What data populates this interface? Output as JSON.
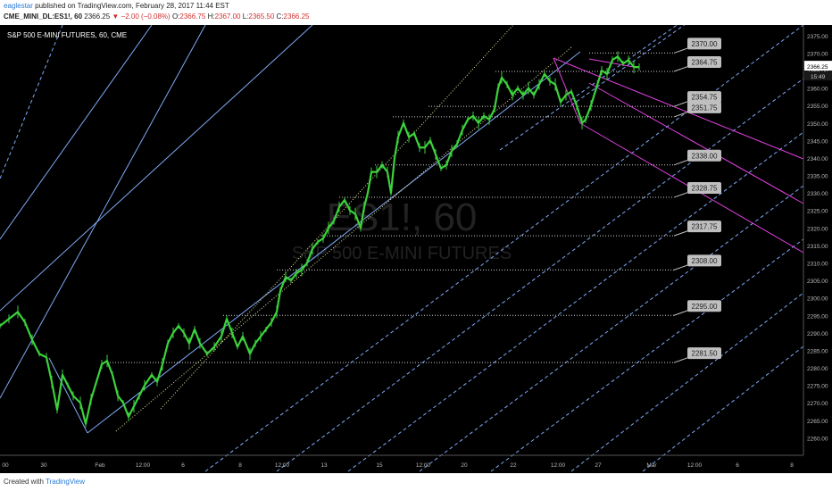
{
  "header": {
    "author": "eaglestar",
    "published_text": "published on TradingView.com, February 28, 2017 11:44 EST",
    "symbol": "CME_MINI_DL:ES1!, 60",
    "last": "2366.25",
    "change": "▼ −2.00 (−0.08%)",
    "open_label": "O:",
    "open": "2366.75",
    "high_label": "H:",
    "high": "2367.00",
    "low_label": "L:",
    "low": "2365.50",
    "close_label": "C:",
    "close": "2366.25"
  },
  "footer": {
    "created_with": "Created with",
    "brand": "TradingView"
  },
  "colors": {
    "background": "#000000",
    "candles": "#3cd23c",
    "channel": "#7fa9f5",
    "parallel_dotted": "#e6e6a0",
    "levels": "#cfcfcf",
    "down_channel": "#e040e0",
    "label_fill": "#bfbfbf"
  },
  "chart_data": {
    "type": "line",
    "title": "S&P 500 E-MINI FUTURES, 60, CME",
    "watermark_symbol": "ES1!, 60",
    "watermark_name": "S&P 500 E-MINI FUTURES",
    "ylim": [
      2255,
      2377
    ],
    "yticks": [
      2260,
      2265,
      2270,
      2275,
      2280,
      2285,
      2290,
      2295,
      2300,
      2305,
      2310,
      2315,
      2320,
      2325,
      2330,
      2335,
      2340,
      2345,
      2350,
      2355,
      2360,
      2365,
      2370,
      2375
    ],
    "y_labels": [
      "2260.00",
      "2265.00",
      "2270.00",
      "2275.00",
      "2280.00",
      "2285.00",
      "2290.00",
      "2295.00",
      "2300.00",
      "2305.00",
      "2310.00",
      "2315.00",
      "2320.00",
      "2325.00",
      "2330.00",
      "2335.00",
      "2340.00",
      "2345.00",
      "2350.00",
      "2355.00",
      "2360.00",
      "2365.00",
      "2370.00",
      "2375.00"
    ],
    "last_price_label": "2366.25",
    "countdown_label": "15:49",
    "xlim": [
      0,
      900
    ],
    "x_ticks": [
      {
        "x": 6,
        "label": "00"
      },
      {
        "x": 49,
        "label": "30"
      },
      {
        "x": 112,
        "label": "Feb"
      },
      {
        "x": 160,
        "label": "12:00"
      },
      {
        "x": 205,
        "label": "6"
      },
      {
        "x": 269,
        "label": "8"
      },
      {
        "x": 316,
        "label": "12:00"
      },
      {
        "x": 363,
        "label": "13"
      },
      {
        "x": 425,
        "label": "15"
      },
      {
        "x": 474,
        "label": "12:00"
      },
      {
        "x": 520,
        "label": "20"
      },
      {
        "x": 575,
        "label": "22"
      },
      {
        "x": 625,
        "label": "12:00"
      },
      {
        "x": 670,
        "label": "27"
      },
      {
        "x": 730,
        "label": "Mar"
      },
      {
        "x": 778,
        "label": "12:00"
      },
      {
        "x": 826,
        "label": "6"
      },
      {
        "x": 887,
        "label": "8"
      }
    ],
    "price_path": [
      [
        0,
        2292
      ],
      [
        10,
        2294
      ],
      [
        20,
        2296
      ],
      [
        28,
        2293
      ],
      [
        36,
        2288
      ],
      [
        44,
        2284
      ],
      [
        52,
        2283
      ],
      [
        58,
        2276
      ],
      [
        64,
        2268
      ],
      [
        70,
        2278
      ],
      [
        76,
        2275
      ],
      [
        82,
        2272
      ],
      [
        90,
        2270
      ],
      [
        96,
        2264
      ],
      [
        102,
        2271
      ],
      [
        108,
        2276
      ],
      [
        114,
        2281
      ],
      [
        120,
        2282
      ],
      [
        126,
        2278
      ],
      [
        132,
        2272
      ],
      [
        138,
        2270
      ],
      [
        144,
        2266
      ],
      [
        150,
        2269
      ],
      [
        156,
        2272
      ],
      [
        162,
        2275
      ],
      [
        170,
        2278
      ],
      [
        176,
        2276
      ],
      [
        182,
        2281
      ],
      [
        188,
        2287
      ],
      [
        194,
        2290
      ],
      [
        200,
        2292
      ],
      [
        206,
        2290
      ],
      [
        212,
        2287
      ],
      [
        218,
        2291
      ],
      [
        224,
        2287
      ],
      [
        232,
        2284
      ],
      [
        240,
        2286
      ],
      [
        248,
        2289
      ],
      [
        254,
        2294
      ],
      [
        260,
        2290
      ],
      [
        266,
        2286
      ],
      [
        272,
        2289
      ],
      [
        280,
        2284
      ],
      [
        286,
        2287
      ],
      [
        292,
        2289
      ],
      [
        298,
        2291
      ],
      [
        304,
        2293
      ],
      [
        310,
        2296
      ],
      [
        314,
        2302
      ],
      [
        320,
        2306
      ],
      [
        326,
        2305
      ],
      [
        332,
        2307
      ],
      [
        338,
        2308
      ],
      [
        344,
        2310
      ],
      [
        350,
        2314
      ],
      [
        356,
        2316
      ],
      [
        362,
        2317
      ],
      [
        368,
        2320
      ],
      [
        374,
        2322
      ],
      [
        380,
        2326
      ],
      [
        386,
        2328
      ],
      [
        392,
        2325
      ],
      [
        398,
        2324
      ],
      [
        404,
        2320
      ],
      [
        408,
        2326
      ],
      [
        412,
        2330
      ],
      [
        416,
        2336
      ],
      [
        422,
        2336
      ],
      [
        428,
        2338
      ],
      [
        434,
        2336
      ],
      [
        438,
        2330
      ],
      [
        442,
        2340
      ],
      [
        446,
        2346
      ],
      [
        452,
        2350
      ],
      [
        458,
        2346
      ],
      [
        464,
        2347
      ],
      [
        470,
        2343
      ],
      [
        476,
        2343
      ],
      [
        482,
        2345
      ],
      [
        488,
        2341
      ],
      [
        494,
        2337
      ],
      [
        500,
        2338
      ],
      [
        506,
        2342
      ],
      [
        512,
        2344
      ],
      [
        518,
        2348
      ],
      [
        524,
        2351
      ],
      [
        530,
        2352
      ],
      [
        536,
        2350
      ],
      [
        542,
        2352
      ],
      [
        548,
        2351
      ],
      [
        554,
        2354
      ],
      [
        558,
        2360
      ],
      [
        562,
        2363
      ],
      [
        568,
        2361
      ],
      [
        574,
        2358
      ],
      [
        580,
        2360
      ],
      [
        586,
        2358
      ],
      [
        592,
        2360
      ],
      [
        598,
        2358
      ],
      [
        604,
        2361
      ],
      [
        610,
        2364
      ],
      [
        616,
        2362
      ],
      [
        622,
        2361
      ],
      [
        628,
        2356
      ],
      [
        634,
        2358
      ],
      [
        640,
        2359
      ],
      [
        646,
        2355
      ],
      [
        652,
        2350
      ],
      [
        656,
        2351
      ],
      [
        662,
        2355
      ],
      [
        668,
        2360
      ],
      [
        674,
        2365
      ],
      [
        680,
        2364
      ],
      [
        686,
        2368
      ],
      [
        692,
        2369
      ],
      [
        698,
        2367
      ],
      [
        704,
        2368
      ],
      [
        710,
        2366
      ],
      [
        716,
        2366
      ]
    ],
    "levels": [
      {
        "value": 2370.0,
        "label": "2370.00"
      },
      {
        "value": 2364.75,
        "label": "2364.75"
      },
      {
        "value": 2354.75,
        "label": "2354.75"
      },
      {
        "value": 2351.75,
        "label": "2351.75"
      },
      {
        "value": 2338.0,
        "label": "2338.00"
      },
      {
        "value": 2328.75,
        "label": "2328.75"
      },
      {
        "value": 2317.75,
        "label": "2317.75"
      },
      {
        "value": 2308.0,
        "label": "2308.00"
      },
      {
        "value": 2295.0,
        "label": "2295.00"
      },
      {
        "value": 2281.5,
        "label": "2281.50"
      }
    ]
  }
}
